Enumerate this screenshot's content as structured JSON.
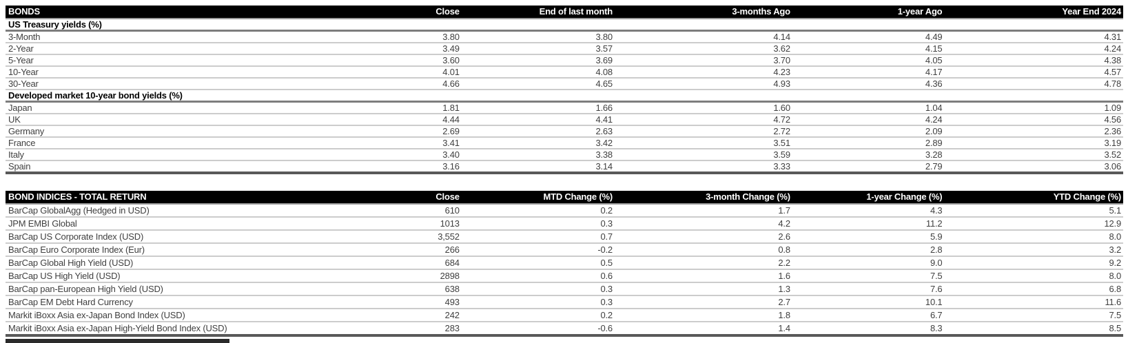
{
  "colors": {
    "header_bg": "#000000",
    "header_text": "#ffffff",
    "row_rule": "#cccccc",
    "section_rule": "#7d7d7d",
    "table_bottom_rule": "#595959",
    "body_text": "#3f3f3f"
  },
  "tables": [
    {
      "id": "bonds",
      "columns": [
        "BONDS",
        "Close",
        "End of last month",
        "3-months Ago",
        "1-year Ago",
        "Year End 2024"
      ],
      "sections": [
        {
          "title": "US Treasury yields (%)",
          "rows": [
            {
              "label": "3-Month",
              "values": [
                "3.80",
                "3.80",
                "4.14",
                "4.49",
                "4.31"
              ]
            },
            {
              "label": "2-Year",
              "values": [
                "3.49",
                "3.57",
                "3.62",
                "4.15",
                "4.24"
              ]
            },
            {
              "label": "5-Year",
              "values": [
                "3.60",
                "3.69",
                "3.70",
                "4.05",
                "4.38"
              ]
            },
            {
              "label": "10-Year",
              "values": [
                "4.01",
                "4.08",
                "4.23",
                "4.17",
                "4.57"
              ]
            },
            {
              "label": "30-Year",
              "values": [
                "4.66",
                "4.65",
                "4.93",
                "4.36",
                "4.78"
              ]
            }
          ]
        },
        {
          "title": "Developed market 10-year bond yields (%)",
          "rows": [
            {
              "label": "Japan",
              "values": [
                "1.81",
                "1.66",
                "1.60",
                "1.04",
                "1.09"
              ]
            },
            {
              "label": "UK",
              "values": [
                "4.44",
                "4.41",
                "4.72",
                "4.24",
                "4.56"
              ]
            },
            {
              "label": "Germany",
              "values": [
                "2.69",
                "2.63",
                "2.72",
                "2.09",
                "2.36"
              ]
            },
            {
              "label": "France",
              "values": [
                "3.41",
                "3.42",
                "3.51",
                "2.89",
                "3.19"
              ]
            },
            {
              "label": "Italy",
              "values": [
                "3.40",
                "3.38",
                "3.59",
                "3.28",
                "3.52"
              ]
            },
            {
              "label": "Spain",
              "values": [
                "3.16",
                "3.14",
                "3.33",
                "2.79",
                "3.06"
              ]
            }
          ]
        }
      ]
    },
    {
      "id": "bond-indices",
      "columns": [
        "BOND INDICES - TOTAL RETURN",
        "Close",
        "MTD Change (%)",
        "3-month Change (%)",
        "1-year Change (%)",
        "YTD Change (%)"
      ],
      "sections": [
        {
          "title": null,
          "rows": [
            {
              "label": "BarCap GlobalAgg (Hedged in USD)",
              "values": [
                "610",
                "0.2",
                "1.7",
                "4.3",
                "5.1"
              ]
            },
            {
              "label": "JPM EMBI Global",
              "values": [
                "1013",
                "0.3",
                "4.2",
                "11.2",
                "12.9"
              ]
            },
            {
              "label": "BarCap US Corporate Index (USD)",
              "values": [
                "3,552",
                "0.7",
                "2.6",
                "5.9",
                "8.0"
              ]
            },
            {
              "label": "BarCap Euro Corporate Index (Eur)",
              "values": [
                "266",
                "-0.2",
                "0.8",
                "2.8",
                "3.2"
              ]
            },
            {
              "label": "BarCap Global High Yield (USD)",
              "values": [
                "684",
                "0.5",
                "2.2",
                "9.0",
                "9.2"
              ]
            },
            {
              "label": "BarCap US High Yield (USD)",
              "values": [
                "2898",
                "0.6",
                "1.6",
                "7.5",
                "8.0"
              ]
            },
            {
              "label": "BarCap pan-European High Yield (USD)",
              "values": [
                "638",
                "0.3",
                "1.3",
                "7.6",
                "6.8"
              ]
            },
            {
              "label": "BarCap EM Debt Hard Currency",
              "values": [
                "493",
                "0.3",
                "2.7",
                "10.1",
                "11.6"
              ]
            },
            {
              "label": "Markit iBoxx Asia ex-Japan  Bond Index (USD)",
              "values": [
                "242",
                "0.2",
                "1.8",
                "6.7",
                "7.5"
              ]
            },
            {
              "label": "Markit iBoxx Asia ex-Japan  High-Yield Bond Index (USD)",
              "values": [
                "283",
                "-0.6",
                "1.4",
                "8.3",
                "8.5"
              ]
            }
          ]
        }
      ]
    }
  ]
}
